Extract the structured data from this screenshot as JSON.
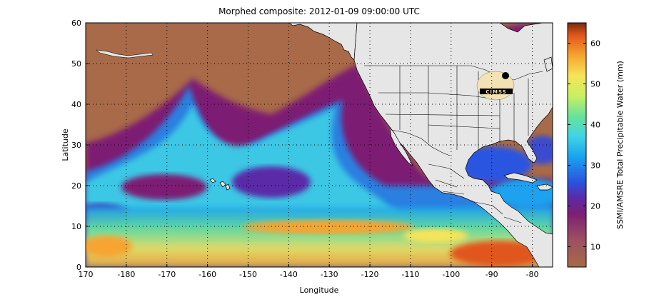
{
  "figure": {
    "title": "Morphed composite: 2012-01-09 09:00:00 UTC",
    "xlabel": "Longitude",
    "ylabel": "Latitude",
    "colorbar_label": "SSMI/AMSRE Total Precipitable Water (mm)",
    "logo_text": "CIMSS"
  },
  "map": {
    "lon_range": [
      170,
      285
    ],
    "lat_range": [
      0,
      60
    ],
    "x_ticks": [
      {
        "value": 170,
        "label": "170"
      },
      {
        "value": 180,
        "label": "-180"
      },
      {
        "value": 190,
        "label": "-170"
      },
      {
        "value": 200,
        "label": "-160"
      },
      {
        "value": 210,
        "label": "-150"
      },
      {
        "value": 220,
        "label": "-140"
      },
      {
        "value": 230,
        "label": "-130"
      },
      {
        "value": 240,
        "label": "-120"
      },
      {
        "value": 250,
        "label": "-110"
      },
      {
        "value": 260,
        "label": "-100"
      },
      {
        "value": 270,
        "label": "-90"
      },
      {
        "value": 280,
        "label": "-80"
      }
    ],
    "y_ticks": [
      {
        "value": 0,
        "label": "0"
      },
      {
        "value": 10,
        "label": "10"
      },
      {
        "value": 20,
        "label": "20"
      },
      {
        "value": 30,
        "label": "30"
      },
      {
        "value": 40,
        "label": "40"
      },
      {
        "value": 50,
        "label": "50"
      },
      {
        "value": 60,
        "label": "60"
      }
    ],
    "grid": "dotted",
    "land_color": "#e6e6e6",
    "ocean_dry_color": "#a86a48"
  },
  "colorbar": {
    "range": [
      5,
      65
    ],
    "ticks": [
      {
        "value": 10,
        "label": "10"
      },
      {
        "value": 20,
        "label": "20"
      },
      {
        "value": 30,
        "label": "30"
      },
      {
        "value": 40,
        "label": "40"
      },
      {
        "value": 50,
        "label": "50"
      },
      {
        "value": 60,
        "label": "60"
      }
    ],
    "stops": [
      {
        "value": 5,
        "color": "#a86a48"
      },
      {
        "value": 12,
        "color": "#9b4e62"
      },
      {
        "value": 18,
        "color": "#7d1f73"
      },
      {
        "value": 22,
        "color": "#5a2aa8"
      },
      {
        "value": 26,
        "color": "#2a54e0"
      },
      {
        "value": 32,
        "color": "#1aa2ef"
      },
      {
        "value": 37,
        "color": "#3fd4e6"
      },
      {
        "value": 42,
        "color": "#66e39a"
      },
      {
        "value": 47,
        "color": "#c8f060"
      },
      {
        "value": 52,
        "color": "#f6e45a"
      },
      {
        "value": 57,
        "color": "#f6a430"
      },
      {
        "value": 62,
        "color": "#e0561a"
      },
      {
        "value": 65,
        "color": "#7a2a10"
      }
    ]
  }
}
